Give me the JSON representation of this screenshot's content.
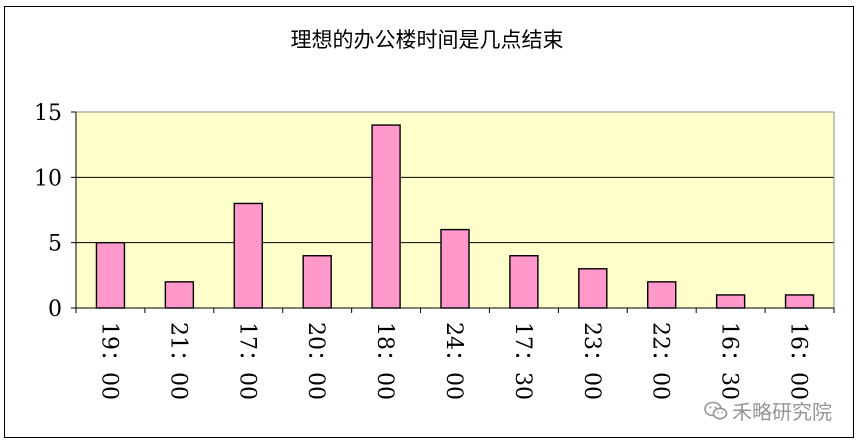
{
  "chart_data": {
    "type": "bar",
    "title": "理想的办公楼时间是几点结束",
    "categories": [
      "19：00",
      "21：00",
      "17：00",
      "20：00",
      "18：00",
      "24：00",
      "17：30",
      "23：00",
      "22：00",
      "16：30",
      "16：00"
    ],
    "values": [
      5,
      2,
      8,
      4,
      14,
      6,
      4,
      3,
      2,
      1,
      1
    ],
    "ylim": [
      0,
      15
    ],
    "yticks": [
      0,
      5,
      10,
      15
    ],
    "xlabel": "",
    "ylabel": "",
    "grid": true,
    "legend": "none",
    "colors": {
      "bar_fill": "#ff99cc",
      "bar_stroke": "#000000",
      "plot_bg": "#ffffcc",
      "gridline": "#000000"
    }
  },
  "watermark": {
    "text": "禾略研究院",
    "icon": "wechat-icon"
  }
}
